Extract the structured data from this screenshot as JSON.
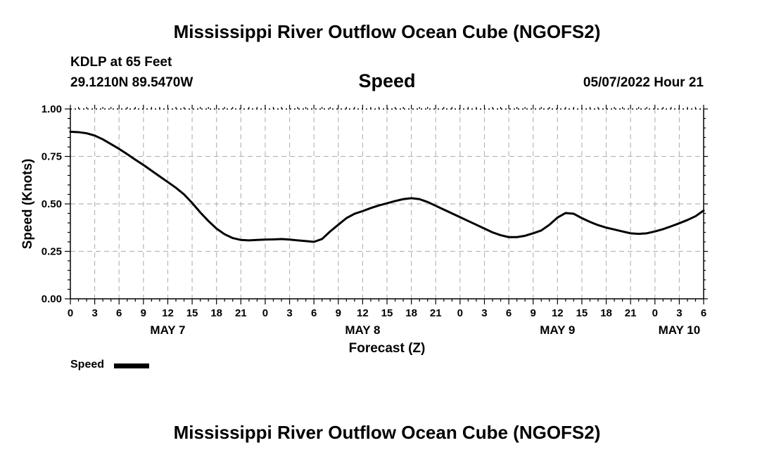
{
  "header": {
    "title": "Mississippi River Outflow Ocean Cube (NGOFS2)",
    "station": "KDLP at 65 Feet",
    "coords": "29.1210N  89.5470W",
    "variable": "Speed",
    "datetime": "05/07/2022 Hour 21"
  },
  "footer": {
    "title": "Mississippi River Outflow Ocean Cube (NGOFS2)"
  },
  "legend": {
    "label": "Speed"
  },
  "chart_data": {
    "type": "line",
    "title": "Speed",
    "xlabel": "Forecast (Z)",
    "ylabel": "Speed (Knots)",
    "x_unit": "hours from 05/07/2022 00Z",
    "xlim": [
      0,
      78
    ],
    "ylim": [
      0,
      1
    ],
    "yticks": [
      0.0,
      0.25,
      0.5,
      0.75,
      1.0
    ],
    "ytick_labels": [
      "0.00",
      "0.25",
      "0.50",
      "0.75",
      "1.00"
    ],
    "xticks": [
      0,
      3,
      6,
      9,
      12,
      15,
      18,
      21,
      24,
      27,
      30,
      33,
      36,
      39,
      42,
      45,
      48,
      51,
      54,
      57,
      60,
      63,
      66,
      69,
      72,
      75,
      78
    ],
    "xtick_labels": [
      "0",
      "3",
      "6",
      "9",
      "12",
      "15",
      "18",
      "21",
      "0",
      "3",
      "6",
      "9",
      "12",
      "15",
      "18",
      "21",
      "0",
      "3",
      "6",
      "9",
      "12",
      "15",
      "18",
      "21",
      "0",
      "3",
      "6"
    ],
    "day_labels": [
      {
        "x": 12,
        "label": "MAY 7"
      },
      {
        "x": 36,
        "label": "MAY 8"
      },
      {
        "x": 60,
        "label": "MAY 9"
      },
      {
        "x": 75,
        "label": "MAY 10"
      }
    ],
    "grid": true,
    "legend_position": "bottom-left",
    "series": [
      {
        "name": "Speed",
        "color": "#000000",
        "x": [
          0,
          1,
          2,
          3,
          4,
          5,
          6,
          7,
          8,
          9,
          10,
          11,
          12,
          13,
          14,
          15,
          16,
          17,
          18,
          19,
          20,
          21,
          22,
          23,
          24,
          25,
          26,
          27,
          28,
          29,
          30,
          31,
          32,
          33,
          34,
          35,
          36,
          37,
          38,
          39,
          40,
          41,
          42,
          43,
          44,
          45,
          46,
          47,
          48,
          49,
          50,
          51,
          52,
          53,
          54,
          55,
          56,
          57,
          58,
          59,
          60,
          61,
          62,
          63,
          64,
          65,
          66,
          67,
          68,
          69,
          70,
          71,
          72,
          73,
          74,
          75,
          76,
          77,
          78
        ],
        "y": [
          0.88,
          0.878,
          0.872,
          0.86,
          0.84,
          0.815,
          0.79,
          0.762,
          0.733,
          0.705,
          0.675,
          0.645,
          0.615,
          0.585,
          0.55,
          0.505,
          0.455,
          0.41,
          0.37,
          0.34,
          0.32,
          0.31,
          0.308,
          0.31,
          0.312,
          0.313,
          0.315,
          0.312,
          0.308,
          0.304,
          0.3,
          0.315,
          0.355,
          0.39,
          0.425,
          0.448,
          0.462,
          0.478,
          0.492,
          0.503,
          0.515,
          0.525,
          0.53,
          0.525,
          0.51,
          0.49,
          0.47,
          0.45,
          0.43,
          0.41,
          0.39,
          0.37,
          0.35,
          0.335,
          0.325,
          0.325,
          0.332,
          0.345,
          0.36,
          0.39,
          0.428,
          0.452,
          0.448,
          0.425,
          0.405,
          0.388,
          0.375,
          0.365,
          0.355,
          0.345,
          0.342,
          0.345,
          0.355,
          0.367,
          0.382,
          0.398,
          0.415,
          0.435,
          0.465
        ]
      }
    ]
  }
}
